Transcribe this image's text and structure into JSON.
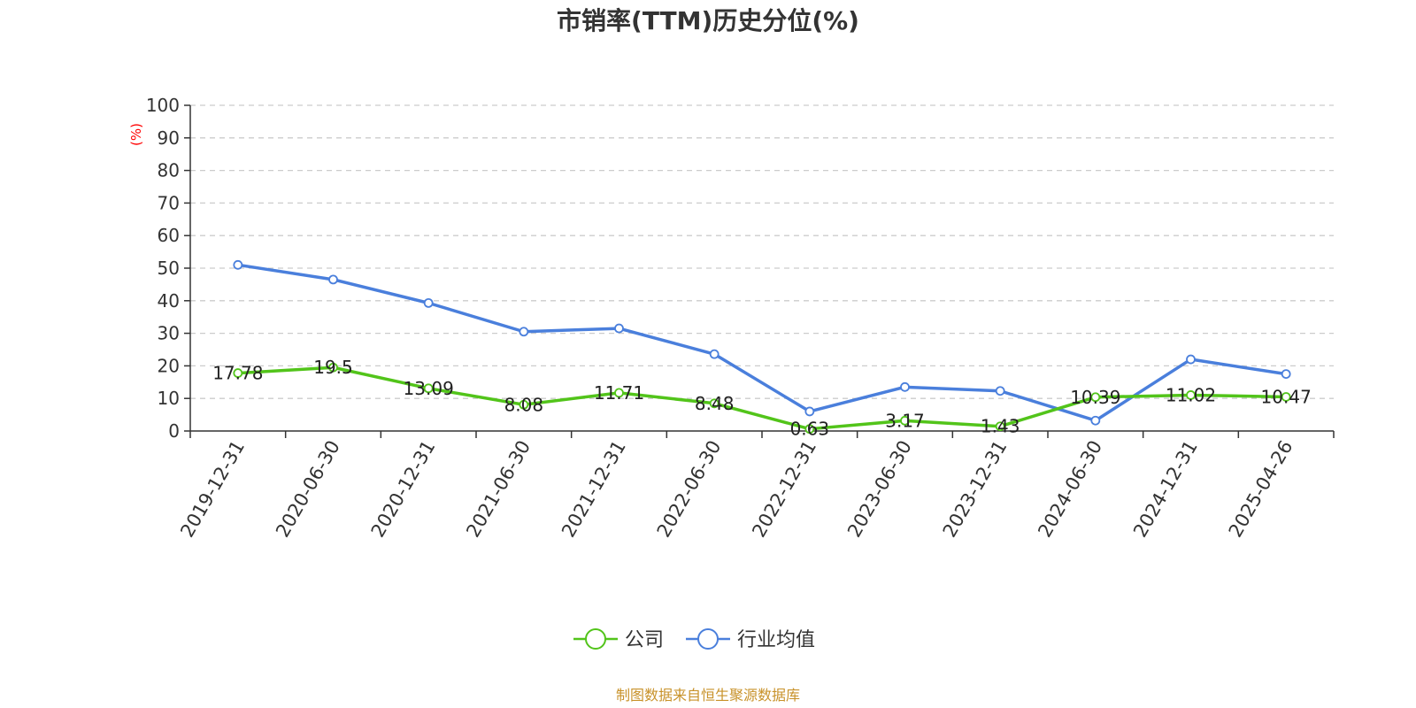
{
  "chart_data": {
    "type": "line",
    "title": "市销率(TTM)历史分位(%)",
    "yunit": "(%)",
    "ylim": [
      0,
      100
    ],
    "yticks": [
      0,
      10,
      20,
      30,
      40,
      50,
      60,
      70,
      80,
      90,
      100
    ],
    "grid": true,
    "legend_position": "bottom",
    "categories": [
      "2019-12-31",
      "2020-06-30",
      "2020-12-31",
      "2021-06-30",
      "2021-12-31",
      "2022-06-30",
      "2022-12-31",
      "2023-06-30",
      "2023-12-31",
      "2024-06-30",
      "2024-12-31",
      "2025-04-26"
    ],
    "series": [
      {
        "name": "公司",
        "color": "#52c41a",
        "values": [
          17.78,
          19.5,
          13.09,
          8.08,
          11.71,
          8.48,
          0.63,
          3.17,
          1.43,
          10.39,
          11.02,
          10.47
        ],
        "labels": [
          "17.78",
          "19.5",
          "13.09",
          "8.08",
          "11.71",
          "8.48",
          "0.63",
          "3.17",
          "1.43",
          "10.39",
          "11.02",
          "10.47"
        ]
      },
      {
        "name": "行业均值",
        "color": "#4a7fdc",
        "values": [
          51,
          46.5,
          39.3,
          30.5,
          31.5,
          23.6,
          6,
          13.5,
          12.3,
          3.2,
          22,
          17.5
        ]
      }
    ],
    "source": "制图数据来自恒生聚源数据库",
    "colors": {
      "axis": "#333333",
      "grid": "#cccccc",
      "unit": "#ff0000",
      "source": "#c8922a"
    }
  }
}
